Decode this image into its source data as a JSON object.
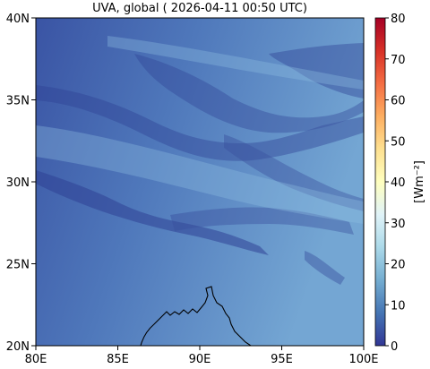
{
  "title": "UVA, global ( 2026-04-11 00:50 UTC)",
  "map": {
    "lat_ticks": [
      "40N",
      "35N",
      "30N",
      "25N",
      "20N"
    ],
    "lon_ticks": [
      "80E",
      "85E",
      "90E",
      "95E",
      "100E"
    ],
    "extent": {
      "lon_min": 80,
      "lon_max": 100,
      "lat_min": 20,
      "lat_max": 40
    }
  },
  "colorbar": {
    "label": "[Wm⁻²]",
    "ticks": [
      "0",
      "10",
      "20",
      "30",
      "40",
      "50",
      "60",
      "70",
      "80"
    ],
    "min": 0,
    "max": 80,
    "cmap": "RdYlBu_r",
    "colors": [
      "#313695",
      "#4575b4",
      "#74add1",
      "#abd9e9",
      "#e0f3f8",
      "#ffffbf",
      "#fee090",
      "#fdae61",
      "#f46d43",
      "#d73027",
      "#a50026"
    ]
  },
  "colors": {
    "background_low": "#3d58a6",
    "background_high": "#6d9fcf",
    "cloud_dark": "#2b3a8f"
  }
}
